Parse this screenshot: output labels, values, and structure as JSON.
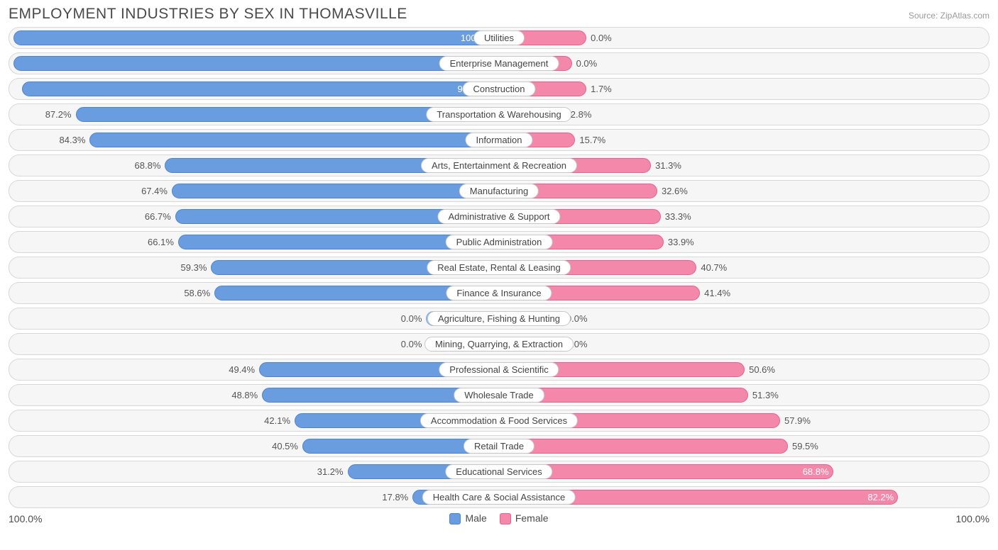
{
  "chart": {
    "type": "diverging-bar",
    "title": "EMPLOYMENT INDUSTRIES BY SEX IN THOMASVILLE",
    "source": "Source: ZipAtlas.com",
    "title_color": "#4a4a4a",
    "title_fontsize": 21,
    "background_color": "#ffffff",
    "row_background": "#f6f6f6",
    "row_border": "#d8d8d8",
    "male_color": "#6a9ce0",
    "male_border": "#4d84d1",
    "female_color": "#f388ab",
    "female_border": "#e9608e",
    "male_light": "#9bbced",
    "female_light": "#f8b3c9",
    "label_fontsize": 13,
    "axis": {
      "left": "100.0%",
      "right": "100.0%"
    },
    "legend": {
      "male": "Male",
      "female": "Female"
    },
    "rows": [
      {
        "category": "Utilities",
        "male": 100.0,
        "female": 0.0,
        "female_stub": 18,
        "male_label": "100.0%",
        "female_label": "0.0%"
      },
      {
        "category": "Enterprise Management",
        "male": 100.0,
        "female": 0.0,
        "female_stub": 15,
        "male_label": "100.0%",
        "female_label": "0.0%"
      },
      {
        "category": "Construction",
        "male": 98.3,
        "female": 1.7,
        "female_stub": 18,
        "male_label": "98.3%",
        "female_label": "1.7%"
      },
      {
        "category": "Transportation & Warehousing",
        "male": 87.2,
        "female": 12.8,
        "male_label": "87.2%",
        "female_label": "12.8%"
      },
      {
        "category": "Information",
        "male": 84.3,
        "female": 15.7,
        "male_label": "84.3%",
        "female_label": "15.7%"
      },
      {
        "category": "Arts, Entertainment & Recreation",
        "male": 68.8,
        "female": 31.3,
        "male_label": "68.8%",
        "female_label": "31.3%"
      },
      {
        "category": "Manufacturing",
        "male": 67.4,
        "female": 32.6,
        "male_label": "67.4%",
        "female_label": "32.6%"
      },
      {
        "category": "Administrative & Support",
        "male": 66.7,
        "female": 33.3,
        "male_label": "66.7%",
        "female_label": "33.3%"
      },
      {
        "category": "Public Administration",
        "male": 66.1,
        "female": 33.9,
        "male_label": "66.1%",
        "female_label": "33.9%"
      },
      {
        "category": "Real Estate, Rental & Leasing",
        "male": 59.3,
        "female": 40.7,
        "male_label": "59.3%",
        "female_label": "40.7%"
      },
      {
        "category": "Finance & Insurance",
        "male": 58.6,
        "female": 41.4,
        "male_label": "58.6%",
        "female_label": "41.4%"
      },
      {
        "category": "Agriculture, Fishing & Hunting",
        "male": 0.0,
        "female": 0.0,
        "male_stub": 15,
        "female_stub": 13,
        "lighter": true,
        "male_label": "0.0%",
        "female_label": "0.0%"
      },
      {
        "category": "Mining, Quarrying, & Extraction",
        "male": 0.0,
        "female": 0.0,
        "male_stub": 15,
        "female_stub": 13,
        "lighter": true,
        "male_label": "0.0%",
        "female_label": "0.0%"
      },
      {
        "category": "Professional & Scientific",
        "male": 49.4,
        "female": 50.6,
        "male_label": "49.4%",
        "female_label": "50.6%"
      },
      {
        "category": "Wholesale Trade",
        "male": 48.8,
        "female": 51.3,
        "male_label": "48.8%",
        "female_label": "51.3%"
      },
      {
        "category": "Accommodation & Food Services",
        "male": 42.1,
        "female": 57.9,
        "male_label": "42.1%",
        "female_label": "57.9%"
      },
      {
        "category": "Retail Trade",
        "male": 40.5,
        "female": 59.5,
        "male_label": "40.5%",
        "female_label": "59.5%"
      },
      {
        "category": "Educational Services",
        "male": 31.2,
        "female": 68.8,
        "male_label": "31.2%",
        "female_label": "68.8%",
        "female_inside": true
      },
      {
        "category": "Health Care & Social Assistance",
        "male": 17.8,
        "female": 82.2,
        "male_label": "17.8%",
        "female_label": "82.2%",
        "female_inside": true
      }
    ]
  }
}
